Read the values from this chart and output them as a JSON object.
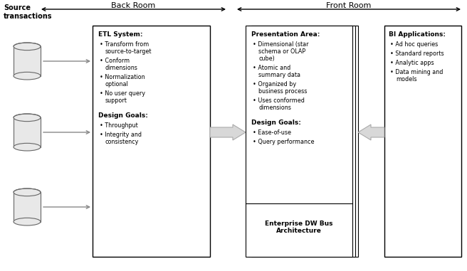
{
  "bg_color": "#ffffff",
  "source_label": "Source\ntransactions",
  "back_room_label": "Back Room",
  "front_room_label": "Front Room",
  "etl_title": "ETL System:",
  "etl_bullets": [
    "Transform from\nsource-to-target",
    "Conform\ndimensions",
    "Normalization\noptional",
    "No user query\nsupport"
  ],
  "design_goals_etl_title": "Design Goals:",
  "design_goals_etl_bullets": [
    "Throughput",
    "Integrity and\nconsistency"
  ],
  "presentation_title": "Presentation Area:",
  "presentation_bullets": [
    "Dimensional (star\nschema or OLAP\ncube)",
    "Atomic and\nsummary data",
    "Organized by\nbusiness process",
    "Uses conformed\ndimensions"
  ],
  "design_goals_pres_title": "Design Goals:",
  "design_goals_pres_bullets": [
    "Ease-of-use",
    "Query performance"
  ],
  "enterprise_label": "Enterprise DW Bus\nArchitecture",
  "bi_title": "BI Applications:",
  "bi_bullets": [
    "Ad hoc queries",
    "Standard reports",
    "Analytic apps",
    "Data mining and\nmodels"
  ],
  "text_color": "#000000",
  "box_edge_color": "#000000",
  "arrow_gray": "#c0c0c0",
  "cylinder_face": "#e8e8e8",
  "cylinder_edge": "#666666"
}
